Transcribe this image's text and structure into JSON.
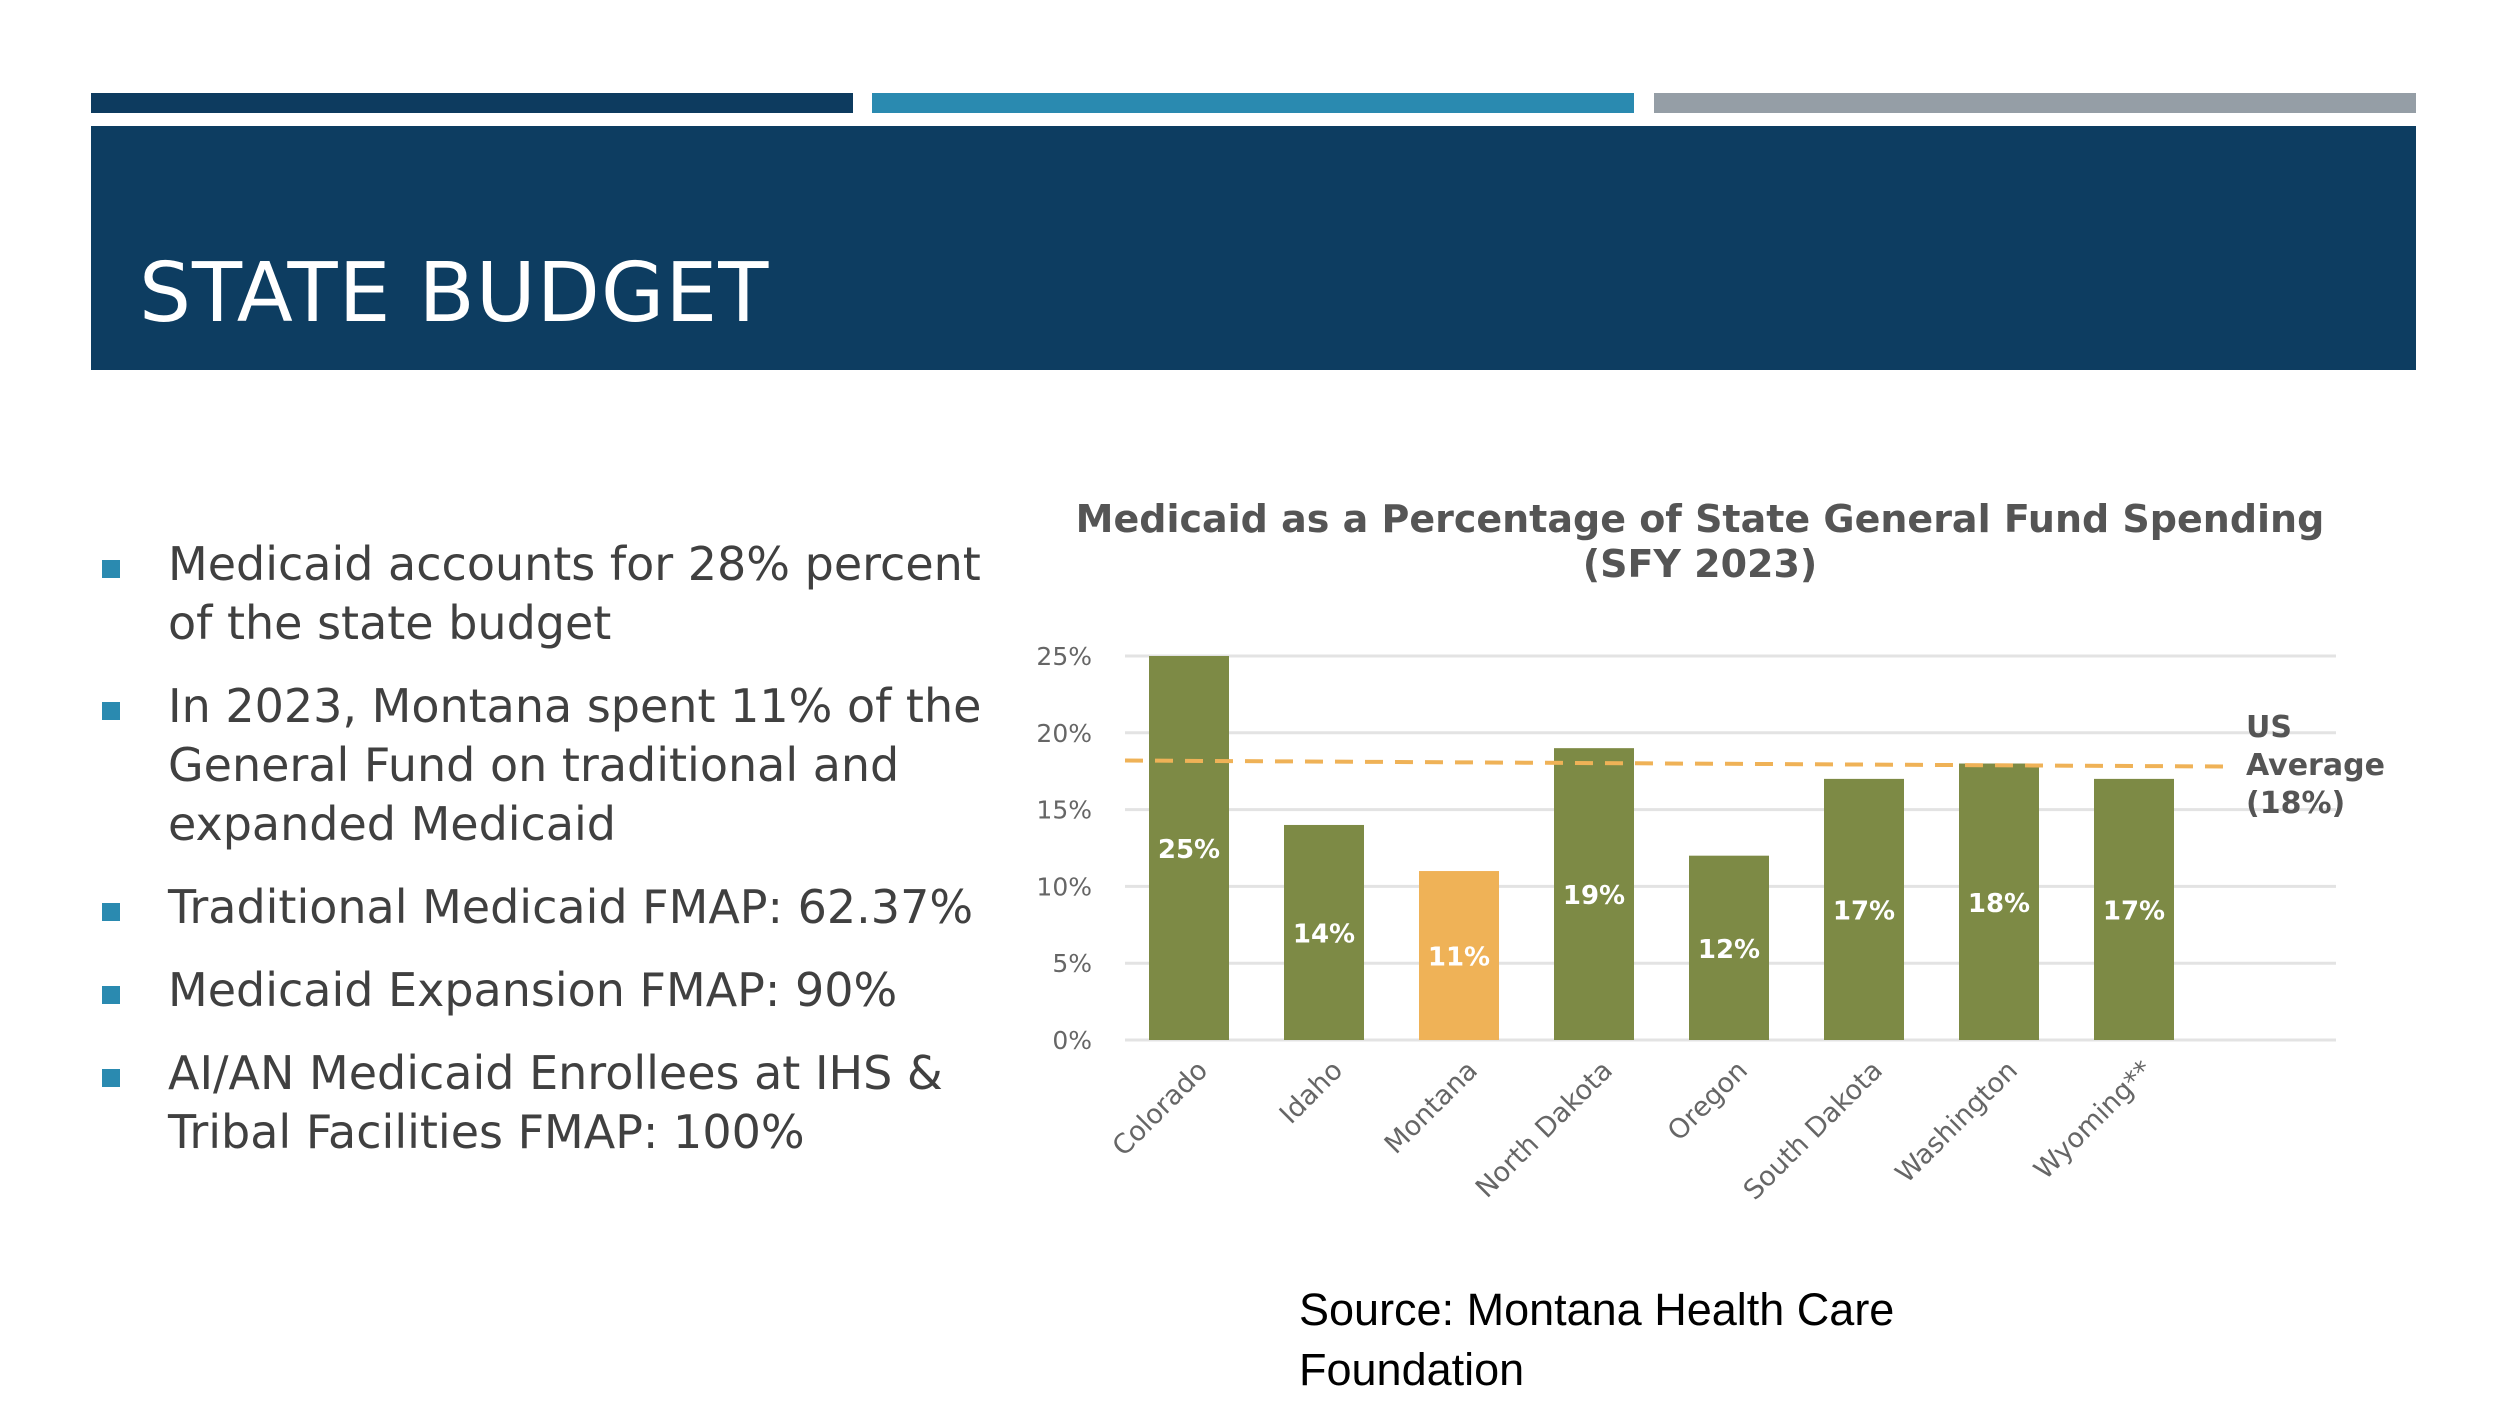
{
  "slide": {
    "title": "STATE BUDGET",
    "bullets": [
      "Medicaid accounts for 28% percent of the state budget",
      "In 2023, Montana spent 11% of the General Fund on traditional and expanded Medicaid",
      "Traditional Medicaid FMAP: 62.37%",
      "Medicaid Expansion FMAP: 90%",
      "AI/AN Medicaid Enrollees at IHS & Tribal Facilities FMAP: 100%"
    ],
    "source": "Source: Montana Health Care Foundation",
    "colors": {
      "dark_blue": "#0d3d61",
      "accent_blue": "#2a8ab0",
      "gray": "#959ea6"
    }
  },
  "chart_data": {
    "type": "bar",
    "title_line1": "Medicaid as a Percentage of State General Fund Spending",
    "title_line2": "(SFY 2023)",
    "categories": [
      "Colorado",
      "Idaho",
      "Montana",
      "North Dakota",
      "Oregon",
      "South Dakota",
      "Washington",
      "Wyoming**"
    ],
    "values": [
      25,
      14,
      11,
      19,
      12,
      17,
      18,
      17
    ],
    "data_labels": [
      "25%",
      "14%",
      "11%",
      "19%",
      "12%",
      "17%",
      "18%",
      "17%"
    ],
    "highlight": "Montana",
    "colors": {
      "default": "#7d8a45",
      "highlight": "#efb257",
      "reference": "#efb257"
    },
    "ylim": [
      0,
      25
    ],
    "yticks": [
      0,
      5,
      10,
      15,
      20,
      25
    ],
    "ytick_labels": [
      "0%",
      "5%",
      "10%",
      "15%",
      "20%",
      "25%"
    ],
    "grid": true,
    "reference_line": {
      "value": 18,
      "label_lines": [
        "US",
        "Average",
        "(18%)"
      ]
    },
    "xlabel": "",
    "ylabel": ""
  }
}
